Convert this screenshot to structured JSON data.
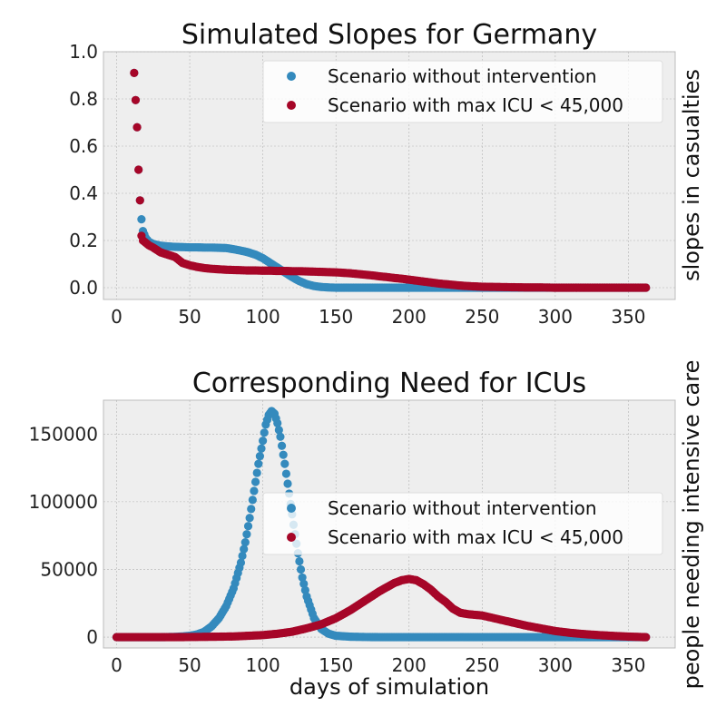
{
  "chart_data": [
    {
      "type": "scatter",
      "title": "Simulated Slopes for Germany",
      "xlabel": "",
      "ylabel": "slopes in casualties",
      "xlim": [
        -9,
        382
      ],
      "ylim": [
        -0.05,
        1.0
      ],
      "xticks": [
        0,
        50,
        100,
        150,
        200,
        250,
        300,
        350
      ],
      "yticks": [
        0.0,
        0.2,
        0.4,
        0.6,
        0.8,
        1.0
      ],
      "ytick_labels": [
        "0.0",
        "0.2",
        "0.4",
        "0.6",
        "0.8",
        "1.0"
      ],
      "grid": true,
      "legend_position": "top-right",
      "series": [
        {
          "name": "Scenario without intervention",
          "color": "#348ABD",
          "x": [
            12,
            14,
            15,
            16,
            17,
            18,
            20,
            22,
            25,
            30,
            35,
            40,
            45,
            50,
            55,
            60,
            65,
            70,
            75,
            80,
            85,
            90,
            95,
            100,
            105,
            110,
            115,
            120,
            125,
            130,
            135,
            140,
            145,
            150,
            160,
            170,
            180,
            190,
            200,
            210,
            220,
            230,
            240,
            250,
            260,
            270,
            280,
            290,
            300,
            310,
            320,
            330,
            340,
            350,
            362
          ],
          "y": [
            0.91,
            0.68,
            0.5,
            0.37,
            0.29,
            0.24,
            0.21,
            0.195,
            0.185,
            0.178,
            0.175,
            0.173,
            0.172,
            0.171,
            0.171,
            0.17,
            0.17,
            0.169,
            0.168,
            0.163,
            0.157,
            0.15,
            0.14,
            0.125,
            0.105,
            0.085,
            0.065,
            0.045,
            0.028,
            0.015,
            0.007,
            0.003,
            0.001,
            0.0,
            0.0,
            0.0,
            0.0,
            0.0,
            0.0,
            0.0,
            0.0,
            0.0,
            0.0,
            0.0,
            0.0,
            0.0,
            0.0,
            0.0,
            0.0,
            0.0,
            0.0,
            0.0,
            0.0,
            0.0,
            0.0
          ]
        },
        {
          "name": "Scenario with max ICU < 45,000",
          "color": "#A60628",
          "x": [
            12,
            14,
            15,
            16,
            17,
            18,
            20,
            22,
            25,
            30,
            35,
            40,
            45,
            50,
            55,
            60,
            65,
            70,
            75,
            80,
            85,
            90,
            95,
            100,
            105,
            110,
            115,
            120,
            125,
            130,
            135,
            140,
            145,
            150,
            155,
            160,
            165,
            170,
            175,
            180,
            185,
            190,
            195,
            200,
            205,
            210,
            215,
            220,
            225,
            230,
            235,
            240,
            250,
            260,
            270,
            280,
            290,
            300,
            310,
            320,
            330,
            340,
            350,
            362
          ],
          "y": [
            0.91,
            0.68,
            0.5,
            0.37,
            0.22,
            0.2,
            0.19,
            0.18,
            0.17,
            0.15,
            0.14,
            0.13,
            0.105,
            0.095,
            0.088,
            0.083,
            0.08,
            0.078,
            0.076,
            0.075,
            0.074,
            0.073,
            0.073,
            0.072,
            0.072,
            0.071,
            0.071,
            0.07,
            0.07,
            0.069,
            0.068,
            0.067,
            0.066,
            0.065,
            0.063,
            0.061,
            0.058,
            0.055,
            0.052,
            0.048,
            0.045,
            0.041,
            0.038,
            0.034,
            0.03,
            0.026,
            0.022,
            0.018,
            0.015,
            0.012,
            0.009,
            0.007,
            0.004,
            0.003,
            0.002,
            0.001,
            0.001,
            0.0,
            0.0,
            0.0,
            0.0,
            0.0,
            0.0,
            0.0
          ]
        }
      ]
    },
    {
      "type": "scatter",
      "title": "Corresponding Need for ICUs",
      "xlabel": "days of simulation",
      "ylabel": "people needing intensive care",
      "xlim": [
        -9,
        382
      ],
      "ylim": [
        -8000,
        175000
      ],
      "xticks": [
        0,
        50,
        100,
        150,
        200,
        250,
        300,
        350
      ],
      "yticks": [
        0,
        50000,
        100000,
        150000
      ],
      "ytick_labels": [
        "0",
        "50000",
        "100000",
        "150000"
      ],
      "grid": true,
      "legend_position": "center-right",
      "series": [
        {
          "name": "Scenario without intervention",
          "color": "#348ABD",
          "x": [
            0,
            10,
            20,
            30,
            40,
            45,
            50,
            55,
            60,
            65,
            70,
            75,
            80,
            85,
            88,
            91,
            94,
            97,
            100,
            102,
            104,
            106,
            108,
            110,
            112,
            115,
            118,
            121,
            124,
            127,
            130,
            135,
            140,
            145,
            150,
            160,
            170,
            180,
            200,
            220,
            240,
            260,
            280,
            300,
            320,
            340,
            362
          ],
          "y": [
            0,
            0,
            0,
            0,
            200,
            500,
            1000,
            2000,
            4000,
            8000,
            14000,
            23000,
            36000,
            55000,
            70000,
            88000,
            108000,
            128000,
            145000,
            157000,
            164000,
            167000,
            165000,
            158000,
            148000,
            128000,
            106000,
            83000,
            62000,
            44000,
            30000,
            14000,
            6000,
            2500,
            1000,
            300,
            100,
            0,
            0,
            0,
            0,
            0,
            0,
            0,
            0,
            0,
            0
          ]
        },
        {
          "name": "Scenario with max ICU < 45,000",
          "color": "#A60628",
          "x": [
            0,
            20,
            40,
            60,
            80,
            90,
            100,
            110,
            120,
            130,
            140,
            150,
            160,
            170,
            180,
            190,
            195,
            200,
            205,
            210,
            215,
            220,
            225,
            230,
            235,
            240,
            245,
            250,
            260,
            270,
            280,
            290,
            300,
            310,
            320,
            330,
            340,
            350,
            362
          ],
          "y": [
            0,
            0,
            0,
            200,
            500,
            1000,
            1500,
            2500,
            4000,
            6500,
            9500,
            14000,
            20000,
            27000,
            34000,
            40000,
            42000,
            43000,
            42000,
            39000,
            35000,
            30000,
            26000,
            21000,
            18000,
            17000,
            16500,
            16000,
            13500,
            11000,
            8500,
            6500,
            4500,
            3200,
            2200,
            1500,
            900,
            400,
            0
          ]
        }
      ]
    }
  ]
}
